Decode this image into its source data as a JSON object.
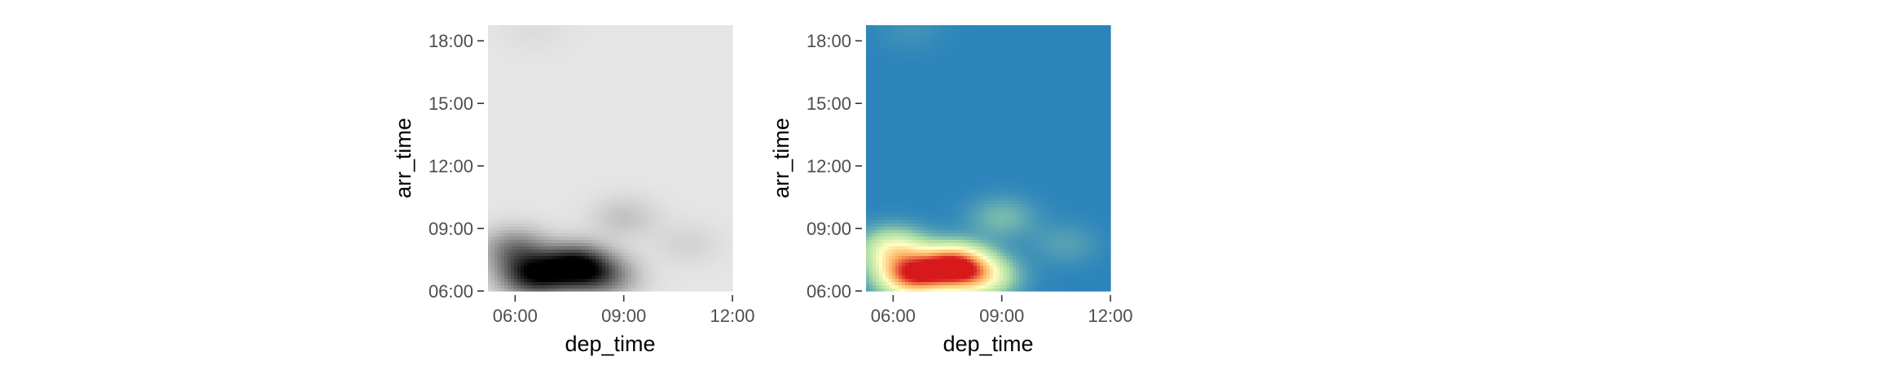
{
  "chart_data": [
    {
      "type": "heatmap",
      "palette": "greys",
      "colors": [
        "#e5e5e5",
        "#000000"
      ],
      "xlabel": "dep_time",
      "ylabel": "arr_time",
      "x_ticks": [
        "06:00",
        "09:00",
        "12:00"
      ],
      "y_ticks": [
        "06:00",
        "09:00",
        "12:00",
        "15:00",
        "18:00"
      ],
      "xlim": [
        "05:15",
        "12:00"
      ],
      "ylim": [
        "06:00",
        "18:45"
      ],
      "density_peaks": [
        {
          "dep_time": "06:30",
          "arr_time": "06:45",
          "density": 0.85
        },
        {
          "dep_time": "07:40",
          "arr_time": "07:10",
          "density": 1.0
        },
        {
          "dep_time": "06:00",
          "arr_time": "08:00",
          "density": 0.45
        },
        {
          "dep_time": "08:30",
          "arr_time": "06:40",
          "density": 0.4
        },
        {
          "dep_time": "09:00",
          "arr_time": "09:30",
          "density": 0.15
        },
        {
          "dep_time": "10:45",
          "arr_time": "08:15",
          "density": 0.08
        },
        {
          "dep_time": "06:30",
          "arr_time": "18:30",
          "density": 0.04
        }
      ]
    },
    {
      "type": "heatmap",
      "palette": "spectral",
      "colors": [
        "#2c84bb",
        "#abdda4",
        "#ffffbf",
        "#fdae61",
        "#d7191c"
      ],
      "xlabel": "dep_time",
      "ylabel": "arr_time",
      "x_ticks": [
        "06:00",
        "09:00",
        "12:00"
      ],
      "y_ticks": [
        "06:00",
        "09:00",
        "12:00",
        "15:00",
        "18:00"
      ],
      "xlim": [
        "05:15",
        "12:00"
      ],
      "ylim": [
        "06:00",
        "18:45"
      ],
      "density_peaks": [
        {
          "dep_time": "06:30",
          "arr_time": "06:45",
          "density": 0.85
        },
        {
          "dep_time": "07:40",
          "arr_time": "07:10",
          "density": 1.0
        },
        {
          "dep_time": "06:00",
          "arr_time": "08:00",
          "density": 0.45
        },
        {
          "dep_time": "08:30",
          "arr_time": "06:40",
          "density": 0.4
        },
        {
          "dep_time": "09:00",
          "arr_time": "09:30",
          "density": 0.15
        },
        {
          "dep_time": "10:45",
          "arr_time": "08:15",
          "density": 0.08
        },
        {
          "dep_time": "06:30",
          "arr_time": "18:30",
          "density": 0.04
        }
      ]
    }
  ]
}
